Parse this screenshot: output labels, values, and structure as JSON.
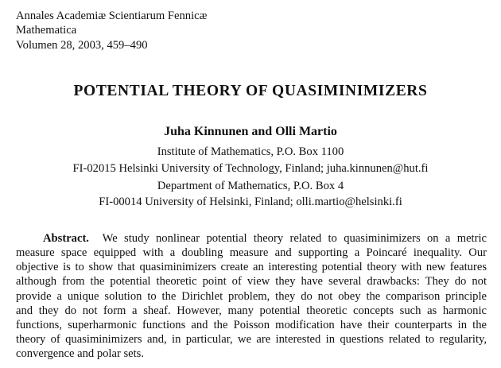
{
  "journal": {
    "name": "Annales Academiæ Scientiarum Fennicæ",
    "series": "Mathematica",
    "volume": "Volumen 28, 2003, 459–490"
  },
  "title": "POTENTIAL THEORY OF QUASIMINIMIZERS",
  "authors": "Juha Kinnunen and Olli Martio",
  "affiliations": [
    "Institute of Mathematics, P.O. Box 1100",
    "FI-02015 Helsinki University of Technology, Finland; juha.kinnunen@hut.fi",
    "Department of Mathematics, P.O. Box 4",
    "FI-00014 University of Helsinki, Finland; olli.martio@helsinki.fi"
  ],
  "abstract": {
    "label": "Abstract.",
    "lines": [
      "We study nonlinear potential theory related to quasiminimizers on a metric",
      "measure space equipped with a doubling measure and supporting a Poincaré inequality.  Our",
      "objective is to show that quasiminimizers create an interesting potential theory with new features",
      "although from the potential theoretic point of view they have several drawbacks: They do not",
      "provide a unique solution to the Dirichlet problem, they do not obey the comparison principle",
      "and they do not form a sheaf.  However, many potential theoretic concepts such as harmonic",
      "functions, superharmonic functions and the Poisson modification have their counterparts in the",
      "theory of quasiminimizers and, in particular, we are interested in questions related to regularity,",
      "convergence and polar sets."
    ]
  }
}
